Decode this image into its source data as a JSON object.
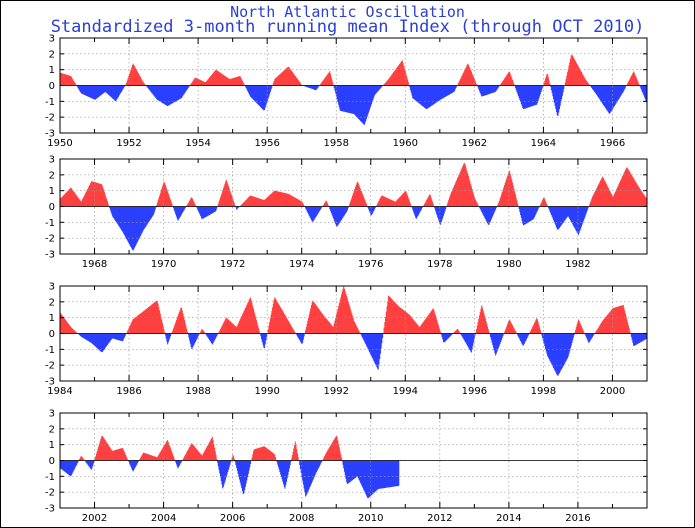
{
  "title_line1": "North Atlantic Oscillation",
  "title_line2": "Standardized 3-month running mean Index (through OCT 2010)",
  "colors": {
    "positive": "#ff4040",
    "negative": "#2a3fff",
    "title": "#2a3fd6",
    "grid": "#999999"
  },
  "chart_data": [
    {
      "type": "area",
      "x_range": [
        1950,
        1967
      ],
      "ylim": [
        -3,
        3
      ],
      "yticks": [
        "3",
        "2",
        "1",
        "0",
        "-1",
        "-2",
        "-3"
      ],
      "xticks": [
        "1950",
        "1952",
        "1954",
        "1956",
        "1958",
        "1960",
        "1962",
        "1964",
        "1966"
      ],
      "grid": true,
      "x": [
        1950.0,
        1950.3,
        1950.6,
        1951.0,
        1951.3,
        1951.6,
        1951.9,
        1952.1,
        1952.4,
        1952.8,
        1953.1,
        1953.5,
        1953.9,
        1954.2,
        1954.5,
        1954.9,
        1955.2,
        1955.5,
        1955.9,
        1956.2,
        1956.6,
        1957.0,
        1957.4,
        1957.8,
        1958.1,
        1958.5,
        1958.8,
        1959.1,
        1959.5,
        1959.9,
        1960.2,
        1960.6,
        1961.0,
        1961.4,
        1961.8,
        1962.2,
        1962.6,
        1963.0,
        1963.4,
        1963.8,
        1964.1,
        1964.4,
        1964.8,
        1965.2,
        1965.5,
        1965.9,
        1966.3,
        1966.6,
        1967.0
      ],
      "values": [
        0.8,
        0.6,
        -0.5,
        -0.9,
        -0.4,
        -1.0,
        0.1,
        1.4,
        0.2,
        -0.9,
        -1.3,
        -0.8,
        0.5,
        0.2,
        1.0,
        0.4,
        0.6,
        -0.7,
        -1.6,
        0.4,
        1.2,
        0.0,
        -0.3,
        0.9,
        -1.6,
        -1.8,
        -2.5,
        -0.6,
        0.4,
        1.6,
        -0.8,
        -1.5,
        -0.9,
        -0.4,
        1.4,
        -0.7,
        -0.4,
        0.9,
        -1.5,
        -1.2,
        0.8,
        -2.0,
        2.0,
        0.4,
        -0.5,
        -1.8,
        -0.4,
        0.9,
        -1.2
      ]
    },
    {
      "type": "area",
      "x_range": [
        1967,
        1984
      ],
      "ylim": [
        -3,
        3
      ],
      "yticks": [
        "3",
        "2",
        "1",
        "0",
        "-1",
        "-2",
        "-3"
      ],
      "xticks": [
        "1968",
        "1970",
        "1972",
        "1974",
        "1976",
        "1978",
        "1980",
        "1982"
      ],
      "grid": true,
      "x": [
        1967.0,
        1967.3,
        1967.6,
        1967.9,
        1968.2,
        1968.5,
        1968.8,
        1969.1,
        1969.4,
        1969.7,
        1970.0,
        1970.4,
        1970.8,
        1971.1,
        1971.5,
        1971.8,
        1972.1,
        1972.5,
        1972.9,
        1973.2,
        1973.6,
        1974.0,
        1974.3,
        1974.7,
        1975.0,
        1975.3,
        1975.6,
        1976.0,
        1976.3,
        1976.7,
        1977.0,
        1977.3,
        1977.7,
        1978.0,
        1978.3,
        1978.7,
        1979.0,
        1979.4,
        1979.7,
        1980.0,
        1980.4,
        1980.7,
        1981.0,
        1981.4,
        1981.7,
        1982.0,
        1982.4,
        1982.7,
        1983.0,
        1983.4,
        1983.7,
        1984.0
      ],
      "values": [
        0.5,
        1.2,
        0.3,
        1.6,
        1.4,
        -0.6,
        -1.6,
        -2.8,
        -1.5,
        -0.5,
        1.6,
        -0.9,
        0.6,
        -0.8,
        -0.3,
        1.7,
        -0.2,
        0.7,
        0.4,
        1.0,
        0.8,
        0.3,
        -1.0,
        0.4,
        -1.3,
        -0.3,
        1.6,
        -0.6,
        0.7,
        0.3,
        1.0,
        -0.8,
        0.8,
        -1.2,
        0.8,
        2.8,
        0.5,
        -1.2,
        0.3,
        2.3,
        -1.2,
        -0.8,
        0.6,
        -1.5,
        -0.6,
        -1.8,
        0.6,
        1.9,
        0.6,
        2.5,
        1.4,
        0.4
      ]
    },
    {
      "type": "area",
      "x_range": [
        1984,
        2001
      ],
      "ylim": [
        -3,
        3
      ],
      "yticks": [
        "3",
        "2",
        "1",
        "0",
        "-1",
        "-2",
        "-3"
      ],
      "xticks": [
        "1984",
        "1986",
        "1988",
        "1990",
        "1992",
        "1994",
        "1996",
        "1998",
        "2000"
      ],
      "grid": true,
      "x": [
        1984.0,
        1984.3,
        1984.6,
        1984.9,
        1985.2,
        1985.5,
        1985.8,
        1986.1,
        1986.4,
        1986.8,
        1987.1,
        1987.5,
        1987.8,
        1988.1,
        1988.4,
        1988.8,
        1989.1,
        1989.5,
        1989.9,
        1990.2,
        1990.6,
        1991.0,
        1991.3,
        1991.6,
        1991.9,
        1992.2,
        1992.5,
        1992.8,
        1993.2,
        1993.5,
        1993.8,
        1994.1,
        1994.4,
        1994.8,
        1995.1,
        1995.5,
        1995.9,
        1996.2,
        1996.6,
        1997.0,
        1997.4,
        1997.8,
        1998.1,
        1998.4,
        1998.7,
        1999.0,
        1999.3,
        1999.7,
        2000.0,
        2000.3,
        2000.6,
        2001.0
      ],
      "values": [
        1.3,
        0.4,
        -0.2,
        -0.6,
        -1.2,
        -0.3,
        -0.5,
        0.9,
        1.4,
        2.1,
        -0.7,
        1.7,
        -1.0,
        0.3,
        -0.7,
        1.0,
        0.4,
        2.3,
        -1.0,
        2.3,
        0.8,
        -0.7,
        2.1,
        1.2,
        0.4,
        3.0,
        0.8,
        -0.5,
        -2.3,
        2.4,
        1.7,
        1.2,
        0.4,
        1.6,
        -0.6,
        0.3,
        -1.2,
        1.8,
        -1.4,
        0.9,
        -0.8,
        1.0,
        -1.4,
        -2.7,
        -1.5,
        0.9,
        -0.6,
        0.8,
        1.6,
        1.8,
        -0.8,
        -0.3
      ]
    },
    {
      "type": "area",
      "x_range": [
        2001,
        2018
      ],
      "ylim": [
        -3,
        3
      ],
      "yticks": [
        "3",
        "2",
        "1",
        "0",
        "-1",
        "-2",
        "-3"
      ],
      "xticks": [
        "2002",
        "2004",
        "2006",
        "2008",
        "2010",
        "2012",
        "2014",
        "2016"
      ],
      "grid": true,
      "x": [
        2001.0,
        2001.3,
        2001.6,
        2001.9,
        2002.2,
        2002.5,
        2002.8,
        2003.1,
        2003.4,
        2003.8,
        2004.1,
        2004.4,
        2004.8,
        2005.1,
        2005.4,
        2005.7,
        2006.0,
        2006.3,
        2006.6,
        2006.9,
        2007.2,
        2007.5,
        2007.8,
        2008.1,
        2008.4,
        2008.7,
        2009.0,
        2009.3,
        2009.6,
        2009.9,
        2010.2,
        2010.5,
        2010.8
      ],
      "values": [
        -0.5,
        -1.0,
        0.3,
        -0.6,
        1.6,
        0.6,
        0.8,
        -0.7,
        0.5,
        0.2,
        1.3,
        -0.5,
        1.1,
        0.3,
        1.5,
        -1.8,
        0.4,
        -2.2,
        0.7,
        0.9,
        0.4,
        -1.8,
        1.2,
        -2.3,
        -0.8,
        0.5,
        1.6,
        -1.5,
        -1.0,
        -2.4,
        -1.8,
        -1.7,
        -1.6
      ]
    }
  ]
}
